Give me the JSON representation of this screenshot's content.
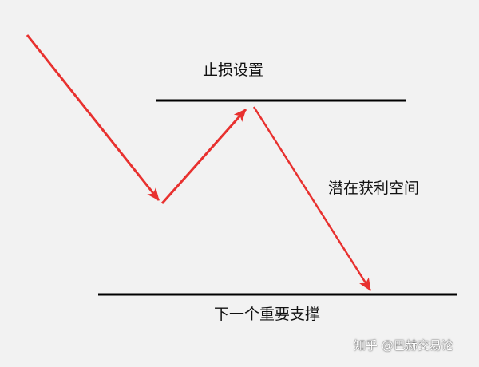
{
  "colors": {
    "background": "#f2f2f2",
    "arrow": "#e8312f",
    "line": "#000000",
    "text": "#111111"
  },
  "labels": {
    "stop_loss": "止损设置",
    "profit_space": "潜在获利空间",
    "support": "下一个重要支撑"
  },
  "watermark": "知乎 @巴赫交易论"
}
